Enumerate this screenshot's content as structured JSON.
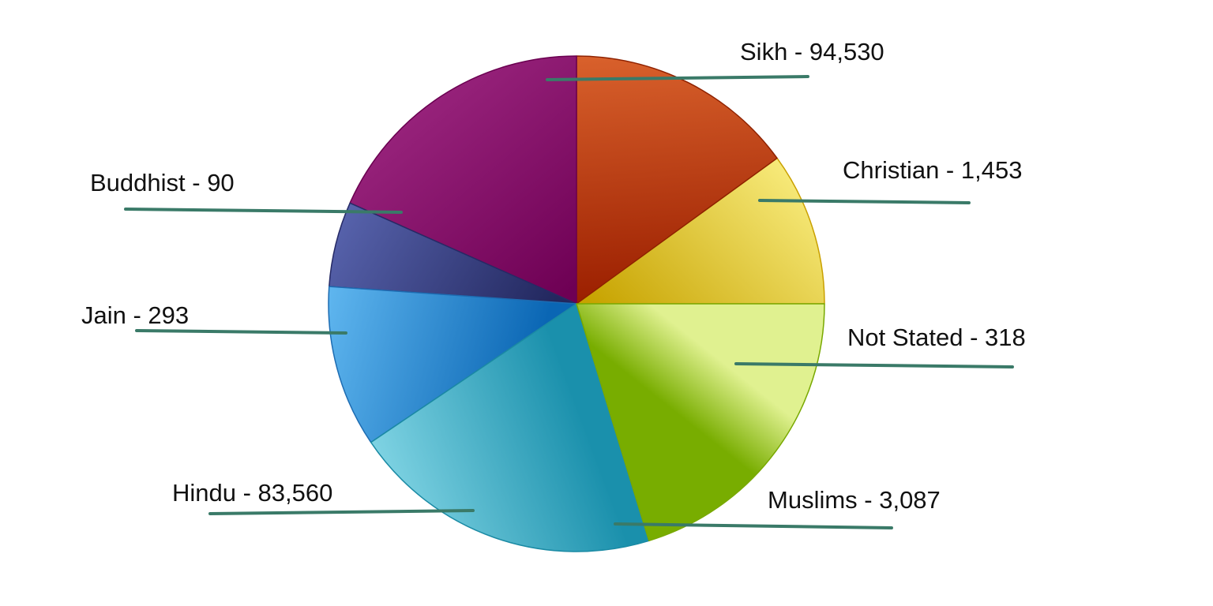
{
  "chart_data": {
    "type": "pie",
    "title": "",
    "legend": "none",
    "slices": [
      {
        "label": "Not Stated - 318",
        "category": "Not Stated",
        "value": 318,
        "color_light": "#f7ea7a",
        "color_dark": "#c7a300",
        "stroke": "#c9a000"
      },
      {
        "label": "Christian - 1,453",
        "category": "Christian",
        "value": 1453,
        "color_light": "#d9612c",
        "color_dark": "#9b1f00",
        "stroke": "#8e2100"
      },
      {
        "label": "Sikh - 94,530",
        "category": "Sikh",
        "value": 94530,
        "color_light": "#a52e88",
        "color_dark": "#6e0054",
        "stroke": "#6a0050"
      },
      {
        "label": "Buddhist - 90",
        "category": "Buddhist",
        "value": 90,
        "color_light": "#5b67b2",
        "color_dark": "#22275e",
        "stroke": "#262a66"
      },
      {
        "label": "Jain - 293",
        "category": "Jain",
        "value": 293,
        "color_light": "#5fb6ef",
        "color_dark": "#0a66b4",
        "stroke": "#1d6cb2"
      },
      {
        "label": "Hindu - 83,560",
        "category": "Hindu",
        "value": 83560,
        "color_light": "#7fd3e3",
        "color_dark": "#1a90ac",
        "stroke": "#1a8aa4"
      },
      {
        "label": "Muslims - 3,087",
        "category": "Muslims",
        "value": 3087,
        "color_light": "#e0f190",
        "color_dark": "#78ad00",
        "stroke": "#78a800"
      }
    ]
  }
}
